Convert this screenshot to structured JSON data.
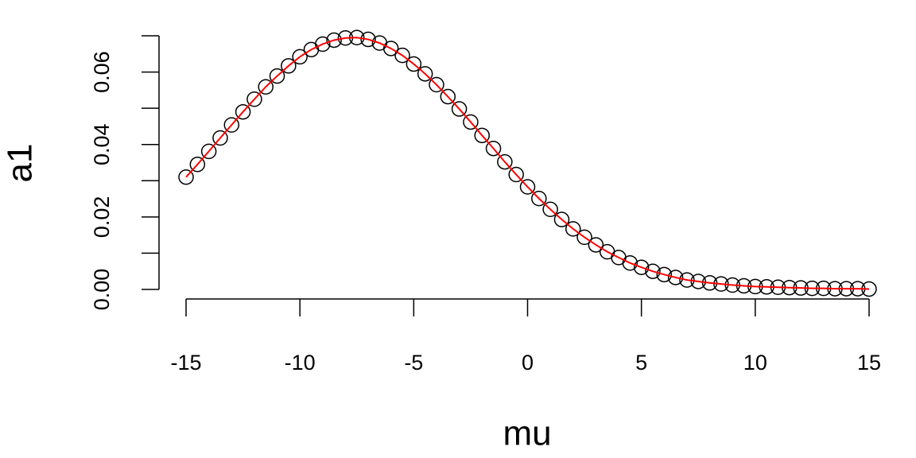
{
  "chart_data": {
    "type": "scatter",
    "x_label": "mu",
    "y_label": "a1",
    "x": [
      -15,
      -14.5,
      -14,
      -13.5,
      -13,
      -12.5,
      -12,
      -11.5,
      -11,
      -10.5,
      -10,
      -9.5,
      -9,
      -8.5,
      -8,
      -7.5,
      -7,
      -6.5,
      -6,
      -5.5,
      -5,
      -4.5,
      -4,
      -3.5,
      -3,
      -2.5,
      -2,
      -1.5,
      -1,
      -0.5,
      0,
      0.5,
      1,
      1.5,
      2,
      2.5,
      3,
      3.5,
      4,
      4.5,
      5,
      5.5,
      6,
      6.5,
      7,
      7.5,
      8,
      8.5,
      9,
      9.5,
      10,
      10.5,
      11,
      11.5,
      12,
      12.5,
      13,
      13.5,
      14,
      14.5,
      15
    ],
    "values": [
      0.031,
      0.0345,
      0.0381,
      0.0418,
      0.0454,
      0.049,
      0.0525,
      0.0559,
      0.0589,
      0.0617,
      0.0642,
      0.0662,
      0.0677,
      0.0688,
      0.0694,
      0.0695,
      0.069,
      0.068,
      0.0665,
      0.0646,
      0.0622,
      0.0595,
      0.0565,
      0.0532,
      0.0498,
      0.0462,
      0.0425,
      0.0389,
      0.0352,
      0.0317,
      0.0283,
      0.0251,
      0.0221,
      0.0193,
      0.0167,
      0.0144,
      0.0123,
      0.0104,
      0.0088,
      0.0073,
      0.0061,
      0.005,
      0.0041,
      0.0033,
      0.0026,
      0.0022,
      0.0018,
      0.0015,
      0.0012,
      0.001,
      0.0008,
      0.0007,
      0.0006,
      0.0005,
      0.0004,
      0.0003,
      0.0003,
      0.0002,
      0.0002,
      0.0002,
      0.0001
    ],
    "marker_color": "#000000",
    "line_color": "#ff0000",
    "xlim": [
      -15,
      15
    ],
    "xticks": [
      -15,
      -10,
      -5,
      0,
      5,
      10,
      15
    ],
    "ylim": [
      0,
      0.07
    ],
    "yticks": [
      {
        "value": 0,
        "label": "0.00"
      },
      {
        "value": 0.02,
        "label": "0.02"
      },
      {
        "value": 0.04,
        "label": "0.04"
      },
      {
        "value": 0.06,
        "label": "0.06"
      }
    ],
    "yminor_ticks": [
      0.01,
      0.03,
      0.05,
      0.07
    ]
  }
}
